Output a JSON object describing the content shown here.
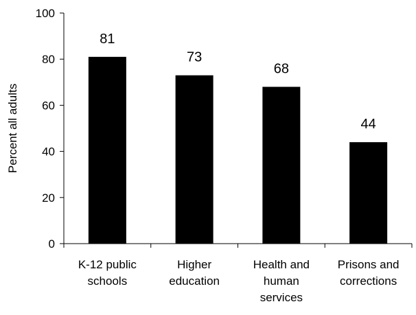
{
  "chart_data": {
    "type": "bar",
    "categories": [
      [
        "K-12 public",
        "schools"
      ],
      [
        "Higher",
        "education"
      ],
      [
        "Health and",
        "human",
        "services"
      ],
      [
        "Prisons and",
        "corrections"
      ]
    ],
    "values": [
      81,
      73,
      68,
      44
    ],
    "data_labels": [
      "81",
      "73",
      "68",
      "44"
    ],
    "ylabel": "Percent all adults",
    "xlabel": "",
    "ylim": [
      0,
      100
    ],
    "yticks": [
      0,
      20,
      40,
      60,
      80,
      100
    ],
    "ytick_labels": [
      "0",
      "20",
      "40",
      "60",
      "80",
      "100"
    ],
    "grid": false,
    "legend": "none",
    "bar_color": "#000000",
    "axis_color": "#000000"
  }
}
